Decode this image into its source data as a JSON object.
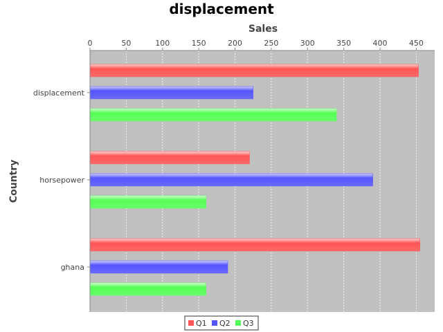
{
  "chart_data": {
    "type": "bar",
    "orientation": "horizontal",
    "title": "displacement",
    "xlabel": "Sales",
    "ylabel": "Country",
    "categories": [
      "displacement",
      "horsepower",
      "ghana"
    ],
    "series": [
      {
        "name": "Q1",
        "color": "#ff5555",
        "values": [
          453,
          220,
          455
        ]
      },
      {
        "name": "Q2",
        "color": "#5555ff",
        "values": [
          225,
          390,
          190
        ]
      },
      {
        "name": "Q3",
        "color": "#55ff55",
        "values": [
          340,
          160,
          160
        ]
      }
    ],
    "xlim": [
      0,
      475
    ],
    "xticks": [
      "0",
      "50",
      "100",
      "150",
      "200",
      "250",
      "300",
      "350",
      "400",
      "450"
    ],
    "value_axis_position": "top",
    "grid": true,
    "legend_position": "bottom",
    "plot_background": "#c0c0c0"
  }
}
